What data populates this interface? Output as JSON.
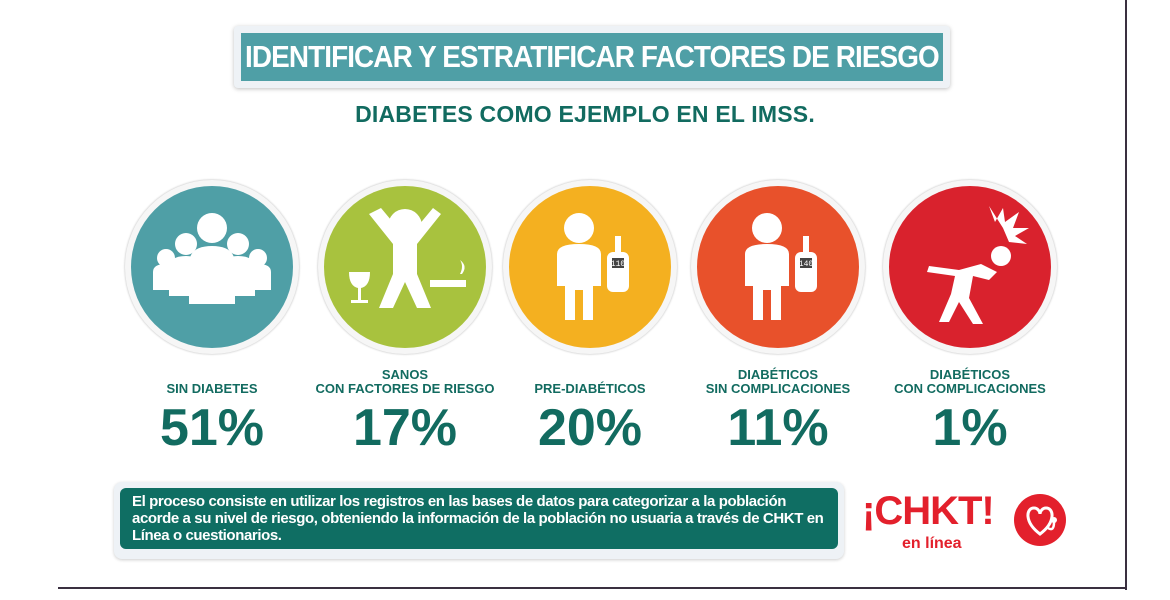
{
  "title": "IDENTIFICAR Y ESTRATIFICAR FACTORES DE RIESGO",
  "subtitle": "DIABETES COMO EJEMPLO EN EL IMSS.",
  "categories": [
    {
      "label": "SIN DIABETES",
      "percent": "51%",
      "color": "#4f9fa6",
      "icon": "group-of-people-icon"
    },
    {
      "label": "SANOS\nCON FACTORES DE RIESGO",
      "percent": "17%",
      "color": "#a8c23e",
      "icon": "person-with-wine-and-cigarette-icon"
    },
    {
      "label": "PRE-DIABÉTICOS",
      "percent": "20%",
      "color": "#f4b020",
      "icon": "person-with-glucometer-icon",
      "meter": "110"
    },
    {
      "label": "DIABÉTICOS\nSIN COMPLICACIONES",
      "percent": "11%",
      "color": "#e8512b",
      "icon": "person-with-glucometer-icon",
      "meter": "140"
    },
    {
      "label": "DIABÉTICOS\nCON COMPLICACIONES",
      "percent": "1%",
      "color": "#d9222d",
      "icon": "person-in-pain-icon"
    }
  ],
  "note": "El proceso consiste en utilizar los registros en las bases de datos para categorizar a la población acorde a su nivel de riesgo, obteniendo la información de la población no usuaria a través de CHKT en Línea o cuestionarios.",
  "logo": {
    "text": "¡CHKT!",
    "sub": "en línea",
    "color": "#e3202c"
  }
}
